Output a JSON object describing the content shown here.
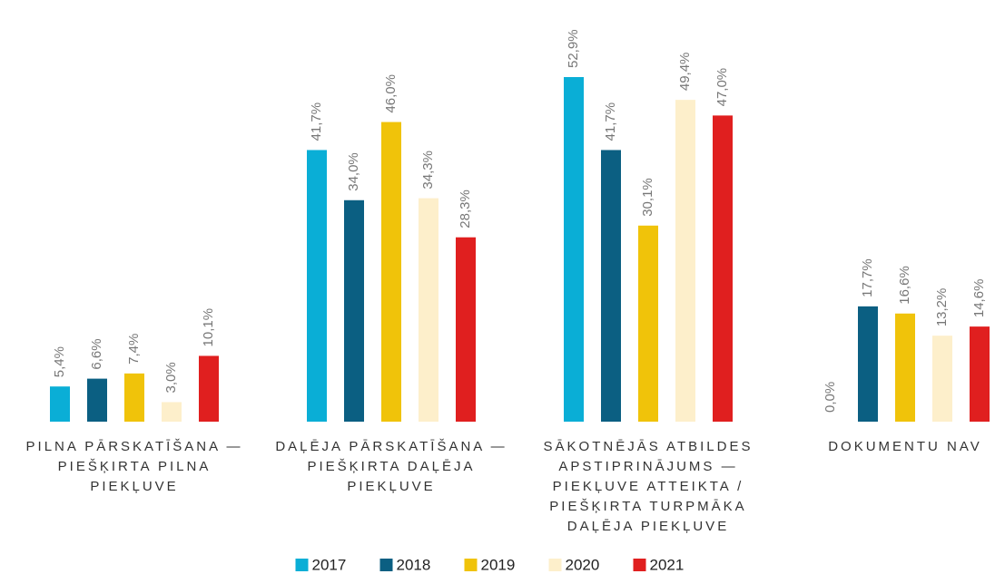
{
  "chart_data": {
    "type": "bar",
    "categories": [
      "PILNA PĀRSKATĪŠANA — PIEŠĶIRTA PILNA PIEKĻUVE",
      "DAĻĒJA PĀRSKATĪŠANA — PIEŠĶIRTA DAĻĒJA PIEKĻUVE",
      "SĀKOTNĒJĀS ATBILDES APSTIPRINĀJUMS — PIEKĻUVE ATTEIKTA / PIEŠĶIRTA TURPMĀKA DAĻĒJA PIEKĻUVE",
      "DOKUMENTU NAV"
    ],
    "series": [
      {
        "name": "2017",
        "color": "#0aaed6",
        "values": [
          5.4,
          41.7,
          52.9,
          0.0
        ],
        "value_labels": [
          "5,4%",
          "41,7%",
          "52,9%",
          "0,0%"
        ]
      },
      {
        "name": "2018",
        "color": "#0b5f82",
        "values": [
          6.6,
          34.0,
          41.7,
          17.7
        ],
        "value_labels": [
          "6,6%",
          "34,0%",
          "41,7%",
          "17,7%"
        ]
      },
      {
        "name": "2019",
        "color": "#f0c30a",
        "values": [
          7.4,
          46.0,
          30.1,
          16.6
        ],
        "value_labels": [
          "7,4%",
          "46,0%",
          "30,1%",
          "16,6%"
        ]
      },
      {
        "name": "2020",
        "color": "#fdefcb",
        "values": [
          3.0,
          34.3,
          49.4,
          13.2
        ],
        "value_labels": [
          "3,0%",
          "34,3%",
          "49,4%",
          "13,2%"
        ]
      },
      {
        "name": "2021",
        "color": "#e01f1f",
        "values": [
          10.1,
          28.3,
          47.0,
          14.6
        ],
        "value_labels": [
          "10,1%",
          "28,3%",
          "47,0%",
          "14,6%"
        ]
      }
    ],
    "ylim": [
      0,
      60
    ],
    "legend": "bottom"
  }
}
